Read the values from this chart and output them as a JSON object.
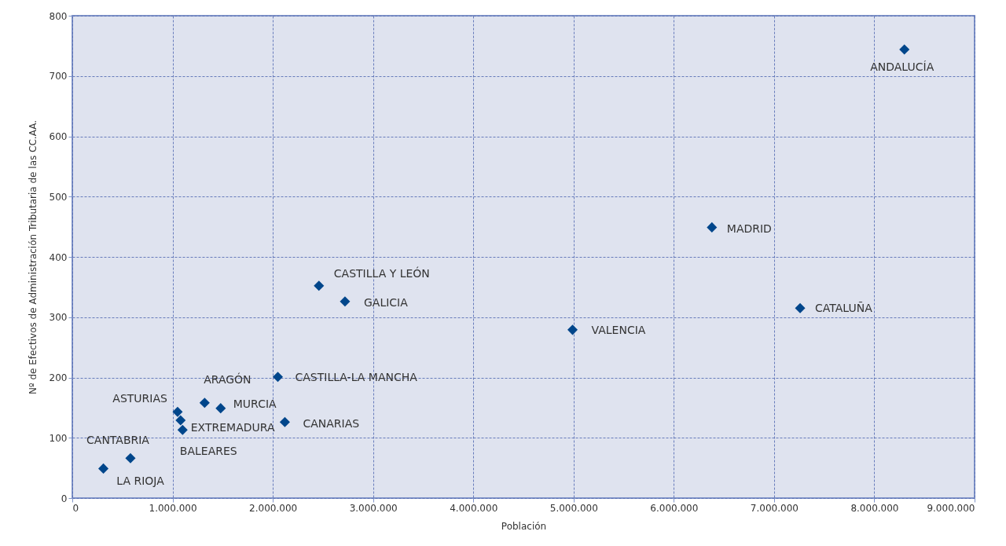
{
  "chart_data": {
    "type": "scatter",
    "xlabel": "Población",
    "ylabel": "Nº de Efectivos de Administración Tributaria de las CC.AA.",
    "x": [
      8300000,
      6380000,
      7260000,
      4990000,
      2460000,
      2720000,
      2050000,
      2120000,
      1480000,
      1320000,
      1050000,
      1080000,
      1100000,
      580000,
      310000
    ],
    "values": [
      744,
      449,
      315,
      279,
      352,
      326,
      201,
      126,
      149,
      158,
      143,
      129,
      113,
      66,
      49
    ],
    "value_labels": [
      "ANDALUCÍA",
      "MADRID",
      "CATALUÑA",
      "VALENCIA",
      "CASTILLA Y LEÓN",
      "GALICIA",
      "CASTILLA-LA MANCHA",
      "CANARIAS",
      "MURCIA",
      "ARAGÓN",
      "ASTURIAS",
      "EXTREMADURA",
      "BALEARES",
      "CANTABRIA",
      "LA RIOJA"
    ],
    "color": "#00468b",
    "marker": "diamond",
    "xlim": [
      0,
      9000000
    ],
    "xticks": [
      0,
      {
        "value": 1000000,
        "label": "1.000.000"
      },
      {
        "value": 2000000,
        "label": "2.000.000"
      },
      {
        "value": 3000000,
        "label": "3.000.000"
      },
      {
        "value": 4000000,
        "label": "4.000.000"
      },
      {
        "value": 5000000,
        "label": "5.000.000"
      },
      {
        "value": 6000000,
        "label": "6.000.000"
      },
      {
        "value": 7000000,
        "label": "7.000.000"
      },
      {
        "value": 8000000,
        "label": "8.000.000"
      },
      {
        "value": 9000000,
        "label": "9.000.000"
      }
    ],
    "ylim": [
      0,
      800
    ],
    "yticks": [
      0,
      100,
      200,
      300,
      400,
      500,
      600,
      700,
      800
    ],
    "grid": true
  }
}
